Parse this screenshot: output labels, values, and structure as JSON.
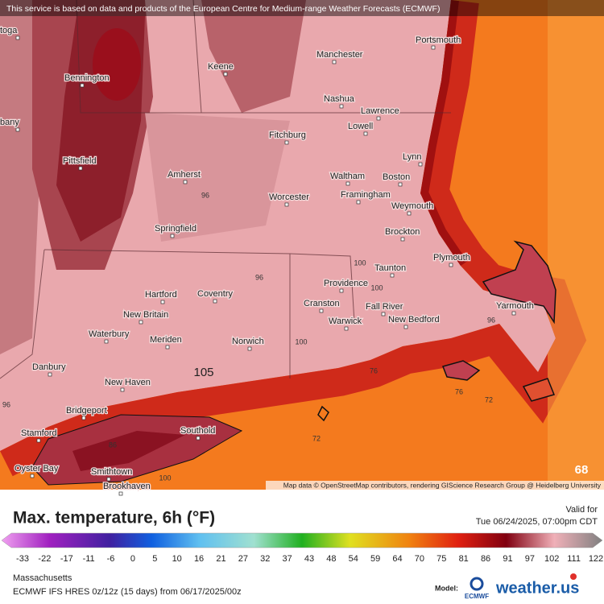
{
  "attribution": "This service is based on data and products of the European Centre for Medium-range Weather Forecasts (ECMWF)",
  "map": {
    "cities": [
      "toga",
      "bany",
      "Bennington",
      "Pittsfield",
      "Keene",
      "Manchester",
      "Portsmouth",
      "Nashua",
      "Lawrence",
      "Lowell",
      "Fitchburg",
      "Lynn",
      "Amherst",
      "Waltham",
      "Boston",
      "Worcester",
      "Framingham",
      "Weymouth",
      "Springfield",
      "Brockton",
      "Plymouth",
      "Taunton",
      "Providence",
      "Hartford",
      "Coventry",
      "Cranston",
      "Fall River",
      "Yarmouth",
      "New Britain",
      "Warwick",
      "New Bedford",
      "Waterbury",
      "Meriden",
      "Norwich",
      "Danbury",
      "New Haven",
      "Bridgeport",
      "Stamford",
      "Southold",
      "Oyster Bay",
      "Smithtown",
      "Brookhaven"
    ],
    "contours": [
      96,
      96,
      96,
      96,
      100,
      100,
      100,
      100,
      105,
      76,
      76,
      72,
      72,
      86,
      68
    ],
    "credit": "Map data © OpenStreetMap contributors, rendering GIScience Research Group @ Heidelberg University"
  },
  "title": "Max. temperature, 6h (°F)",
  "valid_label": "Valid for",
  "valid_time": "Tue 06/24/2025, 07:00pm CDT",
  "legend": {
    "ticks": [
      -33,
      -22,
      -17,
      -11,
      -6,
      0,
      5,
      10,
      16,
      21,
      27,
      32,
      37,
      43,
      48,
      54,
      59,
      64,
      70,
      75,
      81,
      86,
      91,
      97,
      102,
      111,
      122
    ]
  },
  "region": "Massachusetts",
  "model_run": "ECMWF IFS HRES 0z/12z (15 days) from 06/17/2025/00z",
  "model_label": "Model:",
  "model_logo": "ECMWF",
  "brand": "weather.us"
}
